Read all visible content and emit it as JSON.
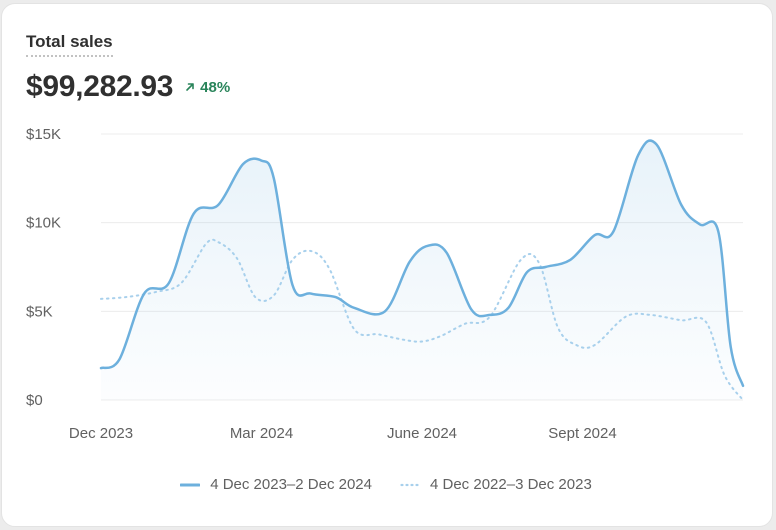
{
  "title": "Total sales",
  "total": "$99,282.93",
  "change": "48%",
  "colors": {
    "current": "#6db0dd",
    "previous": "#a8d0ec",
    "positive": "#29845a",
    "grid": "#ececec"
  },
  "icons": {
    "change": "arrow-up-right-icon"
  },
  "legend": {
    "current": "4 Dec 2023–2 Dec 2024",
    "previous": "4 Dec 2022–3 Dec 2023"
  },
  "chart_data": {
    "type": "line",
    "y_ticks": [
      {
        "value": 15000,
        "label": "$15K"
      },
      {
        "value": 10000,
        "label": "$10K"
      },
      {
        "value": 5000,
        "label": "$5K"
      },
      {
        "value": 0,
        "label": "$0"
      }
    ],
    "x_ticks": [
      {
        "week": 0,
        "label": "Dec 2023"
      },
      {
        "week": 13,
        "label": "Mar 2024"
      },
      {
        "week": 26,
        "label": "June 2024"
      },
      {
        "week": 39,
        "label": "Sept 2024"
      }
    ],
    "xlim": [
      0,
      52
    ],
    "ylim": [
      0,
      15000
    ],
    "series": [
      {
        "name": "4 Dec 2023–2 Dec 2024",
        "style": "solid",
        "points": [
          [
            0,
            1800
          ],
          [
            1.5,
            2300
          ],
          [
            3.5,
            6000
          ],
          [
            5.5,
            6600
          ],
          [
            7.5,
            10500
          ],
          [
            9.5,
            11000
          ],
          [
            11.5,
            13300
          ],
          [
            13,
            13500
          ],
          [
            14,
            12500
          ],
          [
            15.5,
            6500
          ],
          [
            17,
            6000
          ],
          [
            19,
            5800
          ],
          [
            20.5,
            5200
          ],
          [
            23,
            5000
          ],
          [
            25,
            7800
          ],
          [
            26.5,
            8700
          ],
          [
            28,
            8300
          ],
          [
            30,
            5100
          ],
          [
            31.5,
            4800
          ],
          [
            33,
            5200
          ],
          [
            34.5,
            7200
          ],
          [
            36,
            7500
          ],
          [
            38,
            7900
          ],
          [
            40,
            9300
          ],
          [
            41.5,
            9500
          ],
          [
            43.5,
            13800
          ],
          [
            45,
            14400
          ],
          [
            47,
            11000
          ],
          [
            48.5,
            9900
          ],
          [
            50,
            9500
          ],
          [
            51,
            3000
          ],
          [
            52,
            800
          ]
        ]
      },
      {
        "name": "4 Dec 2022–3 Dec 2023",
        "style": "dotted",
        "points": [
          [
            0,
            5700
          ],
          [
            2,
            5800
          ],
          [
            4.5,
            6100
          ],
          [
            6.5,
            6600
          ],
          [
            8.5,
            8800
          ],
          [
            9.5,
            8900
          ],
          [
            11,
            8000
          ],
          [
            12.5,
            5800
          ],
          [
            14,
            5900
          ],
          [
            15.5,
            7900
          ],
          [
            17,
            8400
          ],
          [
            18.5,
            7400
          ],
          [
            20.5,
            4000
          ],
          [
            22.5,
            3700
          ],
          [
            24.5,
            3400
          ],
          [
            26,
            3300
          ],
          [
            27.5,
            3600
          ],
          [
            29.5,
            4300
          ],
          [
            31.5,
            4700
          ],
          [
            34,
            7900
          ],
          [
            35.5,
            7700
          ],
          [
            37,
            4100
          ],
          [
            38.5,
            3100
          ],
          [
            40,
            3100
          ],
          [
            42.5,
            4700
          ],
          [
            44.5,
            4800
          ],
          [
            47,
            4500
          ],
          [
            49,
            4400
          ],
          [
            50.5,
            1400
          ],
          [
            52,
            0
          ]
        ]
      }
    ]
  }
}
